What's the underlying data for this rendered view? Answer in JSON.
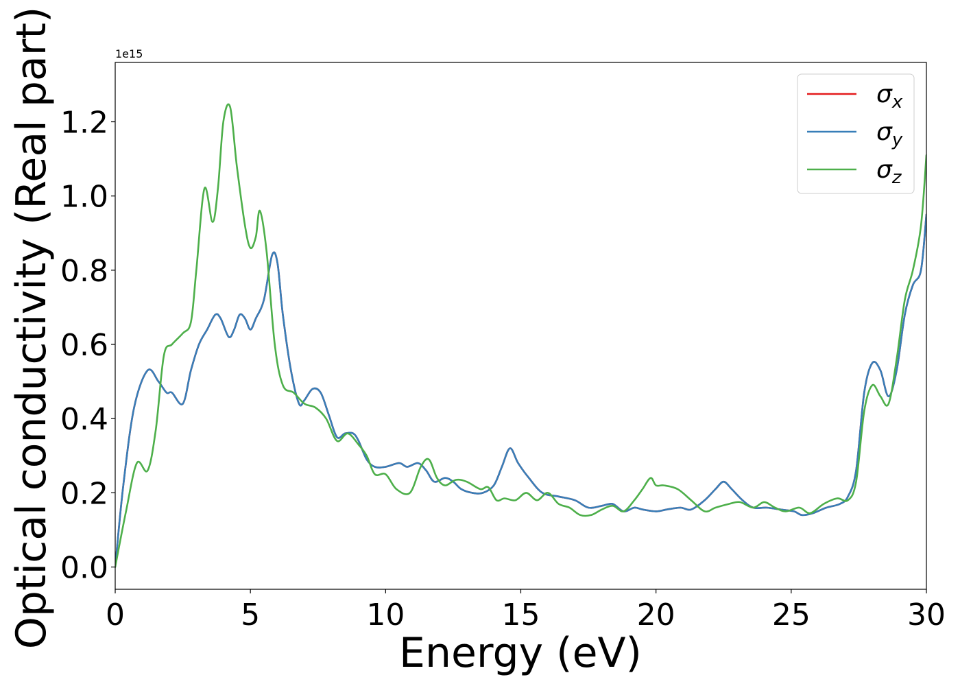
{
  "chart_data": {
    "type": "line",
    "xlabel": "Energy (eV)",
    "ylabel": "Optical conductivity (Real part)",
    "y_offset_label": "1e15",
    "xlim": [
      0,
      30
    ],
    "ylim": [
      -0.06,
      1.36
    ],
    "x_ticks": [
      0,
      5,
      10,
      15,
      20,
      25,
      30
    ],
    "x_tick_labels": [
      "0",
      "5",
      "10",
      "15",
      "20",
      "25",
      "30"
    ],
    "y_ticks": [
      0.0,
      0.2,
      0.4,
      0.6,
      0.8,
      1.0,
      1.2
    ],
    "y_tick_labels": [
      "0.0",
      "0.2",
      "0.4",
      "0.6",
      "0.8",
      "1.0",
      "1.2"
    ],
    "grid": false,
    "legend_position": "top-right",
    "series": [
      {
        "name": "σx",
        "symbol": "σ",
        "subscript": "x",
        "color": "#e41a1c",
        "x": [
          0,
          0.3,
          0.7,
          1.2,
          1.6,
          1.9,
          2.1,
          2.5,
          2.8,
          3.1,
          3.4,
          3.7,
          3.9,
          4.2,
          4.4,
          4.6,
          4.8,
          5.0,
          5.2,
          5.5,
          5.8,
          6.0,
          6.2,
          6.5,
          6.8,
          7.0,
          7.3,
          7.6,
          7.9,
          8.2,
          8.5,
          8.8,
          9.0,
          9.3,
          9.6,
          10.0,
          10.5,
          10.8,
          11.2,
          11.5,
          11.8,
          12.2,
          12.5,
          12.8,
          13.2,
          13.6,
          14.0,
          14.3,
          14.6,
          14.9,
          15.3,
          15.8,
          16.4,
          17.0,
          17.5,
          18.0,
          18.4,
          18.8,
          19.2,
          19.5,
          20.0,
          20.4,
          20.9,
          21.3,
          21.8,
          22.2,
          22.5,
          22.8,
          23.2,
          23.6,
          24.1,
          24.6,
          25.1,
          25.4,
          25.8,
          26.3,
          26.8,
          27.1,
          27.4,
          27.7,
          28.0,
          28.3,
          28.6,
          28.9,
          29.2,
          29.5,
          29.8,
          30.0
        ],
        "values": [
          0.0,
          0.22,
          0.43,
          0.53,
          0.5,
          0.47,
          0.47,
          0.44,
          0.53,
          0.6,
          0.64,
          0.68,
          0.67,
          0.62,
          0.64,
          0.68,
          0.67,
          0.64,
          0.67,
          0.72,
          0.84,
          0.82,
          0.68,
          0.53,
          0.44,
          0.45,
          0.48,
          0.47,
          0.41,
          0.35,
          0.36,
          0.36,
          0.34,
          0.29,
          0.27,
          0.27,
          0.28,
          0.27,
          0.28,
          0.26,
          0.23,
          0.24,
          0.23,
          0.21,
          0.2,
          0.2,
          0.22,
          0.27,
          0.32,
          0.28,
          0.24,
          0.2,
          0.19,
          0.18,
          0.16,
          0.165,
          0.17,
          0.15,
          0.16,
          0.155,
          0.15,
          0.155,
          0.16,
          0.155,
          0.18,
          0.21,
          0.23,
          0.21,
          0.18,
          0.16,
          0.16,
          0.155,
          0.15,
          0.14,
          0.145,
          0.16,
          0.17,
          0.19,
          0.26,
          0.47,
          0.55,
          0.53,
          0.46,
          0.53,
          0.68,
          0.76,
          0.8,
          0.95
        ]
      },
      {
        "name": "σy",
        "symbol": "σ",
        "subscript": "y",
        "color": "#377eb8",
        "x": [
          0,
          0.3,
          0.7,
          1.2,
          1.6,
          1.9,
          2.1,
          2.5,
          2.8,
          3.1,
          3.4,
          3.7,
          3.9,
          4.2,
          4.4,
          4.6,
          4.8,
          5.0,
          5.2,
          5.5,
          5.8,
          6.0,
          6.2,
          6.5,
          6.8,
          7.0,
          7.3,
          7.6,
          7.9,
          8.2,
          8.5,
          8.8,
          9.0,
          9.3,
          9.6,
          10.0,
          10.5,
          10.8,
          11.2,
          11.5,
          11.8,
          12.2,
          12.5,
          12.8,
          13.2,
          13.6,
          14.0,
          14.3,
          14.6,
          14.9,
          15.3,
          15.8,
          16.4,
          17.0,
          17.5,
          18.0,
          18.4,
          18.8,
          19.2,
          19.5,
          20.0,
          20.4,
          20.9,
          21.3,
          21.8,
          22.2,
          22.5,
          22.8,
          23.2,
          23.6,
          24.1,
          24.6,
          25.1,
          25.4,
          25.8,
          26.3,
          26.8,
          27.1,
          27.4,
          27.7,
          28.0,
          28.3,
          28.6,
          28.9,
          29.2,
          29.5,
          29.8,
          30.0
        ],
        "values": [
          0.0,
          0.22,
          0.43,
          0.53,
          0.5,
          0.47,
          0.47,
          0.44,
          0.53,
          0.6,
          0.64,
          0.68,
          0.67,
          0.62,
          0.64,
          0.68,
          0.67,
          0.64,
          0.67,
          0.72,
          0.84,
          0.82,
          0.68,
          0.53,
          0.44,
          0.45,
          0.48,
          0.47,
          0.41,
          0.35,
          0.36,
          0.36,
          0.34,
          0.29,
          0.27,
          0.27,
          0.28,
          0.27,
          0.28,
          0.26,
          0.23,
          0.24,
          0.23,
          0.21,
          0.2,
          0.2,
          0.22,
          0.27,
          0.32,
          0.28,
          0.24,
          0.2,
          0.19,
          0.18,
          0.16,
          0.165,
          0.17,
          0.15,
          0.16,
          0.155,
          0.15,
          0.155,
          0.16,
          0.155,
          0.18,
          0.21,
          0.23,
          0.21,
          0.18,
          0.16,
          0.16,
          0.155,
          0.15,
          0.14,
          0.145,
          0.16,
          0.17,
          0.19,
          0.26,
          0.47,
          0.55,
          0.53,
          0.46,
          0.53,
          0.68,
          0.76,
          0.8,
          0.95
        ]
      },
      {
        "name": "σz",
        "symbol": "σ",
        "subscript": "z",
        "color": "#4daf4a",
        "x": [
          0,
          0.4,
          0.8,
          1.2,
          1.5,
          1.8,
          2.1,
          2.5,
          2.8,
          3.0,
          3.3,
          3.6,
          3.8,
          4.0,
          4.25,
          4.5,
          4.8,
          5.0,
          5.2,
          5.35,
          5.6,
          5.9,
          6.2,
          6.6,
          7.0,
          7.4,
          7.8,
          8.2,
          8.6,
          9.0,
          9.3,
          9.6,
          10.0,
          10.4,
          10.9,
          11.3,
          11.6,
          11.9,
          12.2,
          12.6,
          13.0,
          13.5,
          13.8,
          14.1,
          14.4,
          14.8,
          15.2,
          15.6,
          16.0,
          16.4,
          16.8,
          17.2,
          17.6,
          18.0,
          18.4,
          18.8,
          19.2,
          19.5,
          19.8,
          20.0,
          20.3,
          20.8,
          21.3,
          21.8,
          22.2,
          22.7,
          23.1,
          23.6,
          24.0,
          24.4,
          24.8,
          25.3,
          25.7,
          26.2,
          26.7,
          27.1,
          27.4,
          27.7,
          28.0,
          28.3,
          28.6,
          28.9,
          29.2,
          29.5,
          29.8,
          30.0
        ],
        "values": [
          0.0,
          0.15,
          0.28,
          0.26,
          0.37,
          0.57,
          0.6,
          0.63,
          0.66,
          0.8,
          1.02,
          0.93,
          1.02,
          1.2,
          1.24,
          1.08,
          0.92,
          0.86,
          0.89,
          0.96,
          0.85,
          0.6,
          0.49,
          0.47,
          0.44,
          0.43,
          0.4,
          0.34,
          0.36,
          0.33,
          0.3,
          0.25,
          0.25,
          0.21,
          0.2,
          0.27,
          0.29,
          0.24,
          0.22,
          0.235,
          0.23,
          0.21,
          0.215,
          0.18,
          0.185,
          0.18,
          0.2,
          0.18,
          0.2,
          0.17,
          0.16,
          0.14,
          0.14,
          0.155,
          0.165,
          0.15,
          0.18,
          0.21,
          0.24,
          0.22,
          0.22,
          0.21,
          0.18,
          0.15,
          0.16,
          0.17,
          0.175,
          0.16,
          0.175,
          0.16,
          0.15,
          0.16,
          0.145,
          0.17,
          0.185,
          0.18,
          0.23,
          0.42,
          0.49,
          0.46,
          0.44,
          0.56,
          0.72,
          0.8,
          0.92,
          1.11
        ]
      }
    ]
  }
}
